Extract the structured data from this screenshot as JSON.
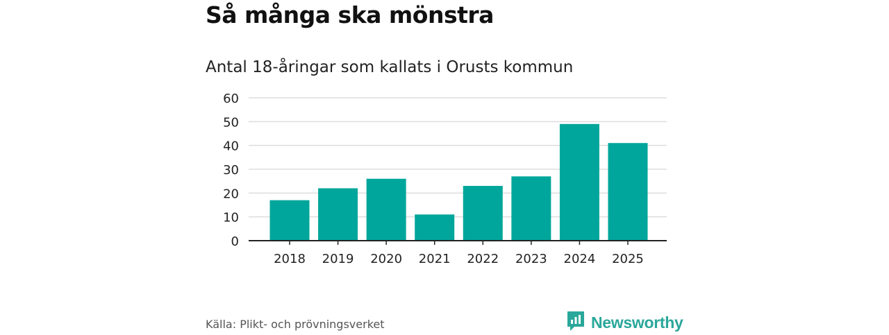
{
  "title": "Så många ska mönstra",
  "subtitle": "Antal 18-åringar som kallats i Orusts kommun",
  "source": "Källa: Plikt- och prövningsverket",
  "brand": {
    "name": "Newsworthy",
    "icon": "newsworthy-logo-icon",
    "color": "#2aa79b"
  },
  "colors": {
    "bar": "#00a69b",
    "grid": "#dddddd",
    "axis": "#222222"
  },
  "chart_data": {
    "type": "bar",
    "title": "Antal 18-åringar som kallats i Orusts kommun",
    "categories": [
      "2018",
      "2019",
      "2020",
      "2021",
      "2022",
      "2023",
      "2024",
      "2025"
    ],
    "values": [
      17,
      22,
      26,
      11,
      23,
      27,
      49,
      41
    ],
    "xlabel": "",
    "ylabel": "",
    "ylim": [
      0,
      60
    ],
    "yticks": [
      0,
      10,
      20,
      30,
      40,
      50,
      60
    ],
    "grid": true
  }
}
